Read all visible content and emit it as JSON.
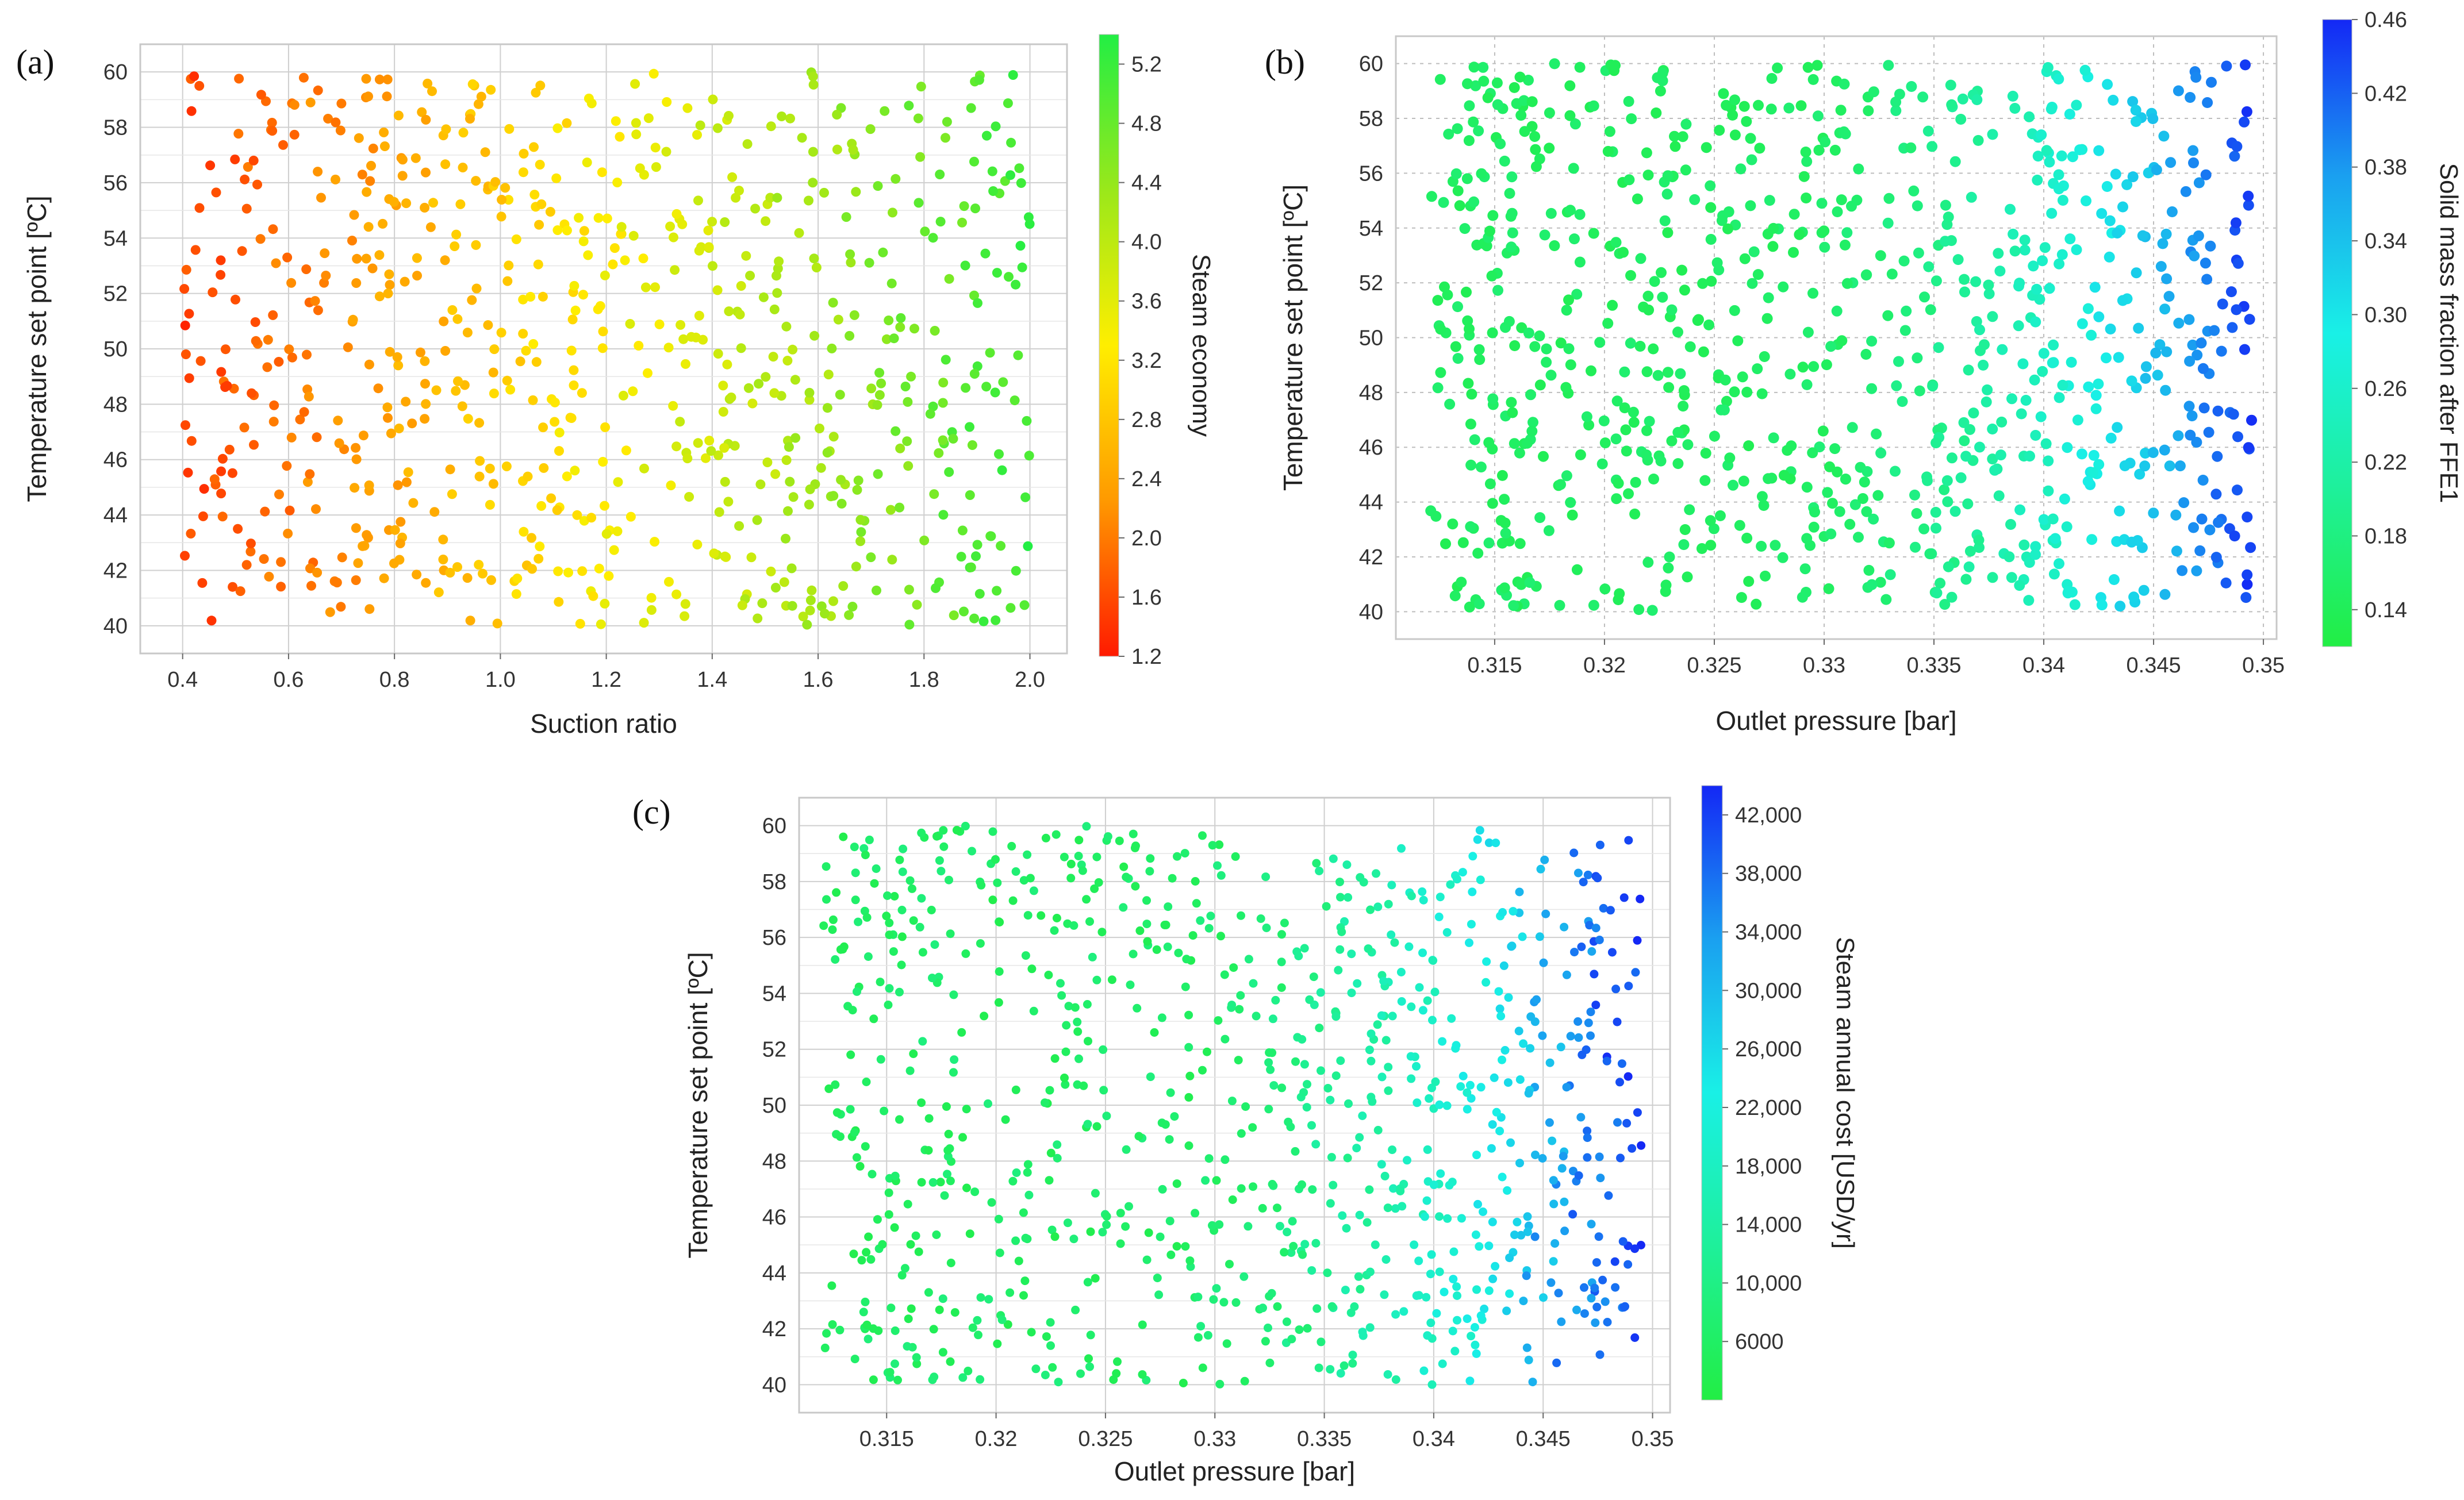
{
  "chart_data": [
    {
      "panel": "(a)",
      "type": "scatter",
      "title": "",
      "xlabel": "Suction ratio",
      "ylabel": "Temperature set point [ºC]",
      "xlim": [
        0.32,
        2.07
      ],
      "ylim": [
        39.0,
        61.0
      ],
      "xticks": [
        0.4,
        0.6,
        0.8,
        1.0,
        1.2,
        1.4,
        1.6,
        1.8,
        2.0
      ],
      "xtick_labels": [
        "0.4",
        "0.6",
        "0.8",
        "1.0",
        "1.2",
        "1.4",
        "1.6",
        "1.8",
        "2.0"
      ],
      "yticks": [
        40,
        42,
        44,
        46,
        48,
        50,
        52,
        54,
        56,
        58,
        60
      ],
      "ytick_labels": [
        "40",
        "42",
        "44",
        "46",
        "48",
        "50",
        "52",
        "54",
        "56",
        "58",
        "60"
      ],
      "grid": "solid",
      "colorbar": {
        "label": "Steam economy",
        "range": [
          1.2,
          5.4
        ],
        "ticks": [
          1.2,
          1.6,
          2.0,
          2.4,
          2.8,
          3.2,
          3.6,
          4.0,
          4.4,
          4.8,
          5.2
        ],
        "tick_labels": [
          "1.2",
          "1.6",
          "2.0",
          "2.4",
          "2.8",
          "3.2",
          "3.6",
          "4.0",
          "4.4",
          "4.8",
          "5.2"
        ],
        "colors": [
          "#ff1a00",
          "#ff9900",
          "#ffee00",
          "#9ae81a",
          "#22ee44"
        ],
        "label_side": "right"
      },
      "series": {
        "name": "design points",
        "x_range": [
          0.4,
          2.0
        ],
        "y_range": [
          40.0,
          60.0
        ],
        "count": 760,
        "color_rule": "steam economy rises with suction ratio (about 1.5 at 0.4 to 5.2 at 2.0)"
      }
    },
    {
      "panel": "(b)",
      "type": "scatter",
      "title": "",
      "xlabel": "Outlet pressure [bar]",
      "ylabel": "Temperature set point [ºC]",
      "xlim": [
        0.3105,
        0.3506
      ],
      "ylim": [
        39.0,
        61.0
      ],
      "xticks": [
        0.315,
        0.32,
        0.325,
        0.33,
        0.335,
        0.34,
        0.345,
        0.35
      ],
      "xtick_labels": [
        "0.315",
        "0.32",
        "0.325",
        "0.33",
        "0.335",
        "0.34",
        "0.345",
        "0.35"
      ],
      "yticks": [
        40,
        42,
        44,
        46,
        48,
        50,
        52,
        54,
        56,
        58,
        60
      ],
      "ytick_labels": [
        "40",
        "42",
        "44",
        "46",
        "48",
        "50",
        "52",
        "54",
        "56",
        "58",
        "60"
      ],
      "grid": "dotted",
      "colorbar": {
        "label": "Solid mass fraction after FFE1",
        "range": [
          0.12,
          0.46
        ],
        "ticks": [
          0.14,
          0.18,
          0.22,
          0.26,
          0.3,
          0.34,
          0.38,
          0.42,
          0.46
        ],
        "tick_labels": [
          "0.14",
          "0.18",
          "0.22",
          "0.26",
          "0.30",
          "0.34",
          "0.38",
          "0.42",
          "0.46"
        ],
        "colors": [
          "#22ee44",
          "#1ef09a",
          "#19f0e6",
          "#1aa0f0",
          "#1428f5"
        ],
        "label_side": "right"
      },
      "series": {
        "name": "design points",
        "x_range": [
          0.312,
          0.3495
        ],
        "y_range": [
          40.0,
          60.0
        ],
        "count": 900,
        "color_rule": "solid mass fraction rises with outlet pressure (about 0.15 below 0.33 bar to 0.45 near 0.35 bar)"
      }
    },
    {
      "panel": "(c)",
      "type": "scatter",
      "title": "",
      "xlabel": "Outlet pressure [bar]",
      "ylabel": "Temperature set point [ºC]",
      "xlim": [
        0.311,
        0.3508
      ],
      "ylim": [
        39.0,
        61.0
      ],
      "xticks": [
        0.315,
        0.32,
        0.325,
        0.33,
        0.335,
        0.34,
        0.345,
        0.35
      ],
      "xtick_labels": [
        "0.315",
        "0.32",
        "0.325",
        "0.33",
        "0.335",
        "0.34",
        "0.345",
        "0.35"
      ],
      "yticks": [
        40,
        42,
        44,
        46,
        48,
        50,
        52,
        54,
        56,
        58,
        60
      ],
      "ytick_labels": [
        "40",
        "42",
        "44",
        "46",
        "48",
        "50",
        "52",
        "54",
        "56",
        "58",
        "60"
      ],
      "grid": "solid",
      "colorbar": {
        "label": "Steam annual cost [USD/yr]",
        "range": [
          2000,
          44000
        ],
        "ticks": [
          6000,
          10000,
          14000,
          18000,
          22000,
          26000,
          30000,
          34000,
          38000,
          42000
        ],
        "tick_labels": [
          "6000",
          "10,000",
          "14,000",
          "18,000",
          "22,000",
          "26,000",
          "30,000",
          "34,000",
          "38,000",
          "42,000"
        ],
        "colors": [
          "#22ee44",
          "#1ef09a",
          "#19f0e6",
          "#1aa0f0",
          "#1428f5"
        ],
        "label_side": "right"
      },
      "series": {
        "name": "design points",
        "x_range": [
          0.312,
          0.3495
        ],
        "y_range": [
          40.0,
          60.0
        ],
        "count": 900,
        "color_rule": "steam annual cost rises with outlet pressure (about 6000 at 0.315 bar up to about 42,000 near 0.35 bar)"
      }
    }
  ]
}
